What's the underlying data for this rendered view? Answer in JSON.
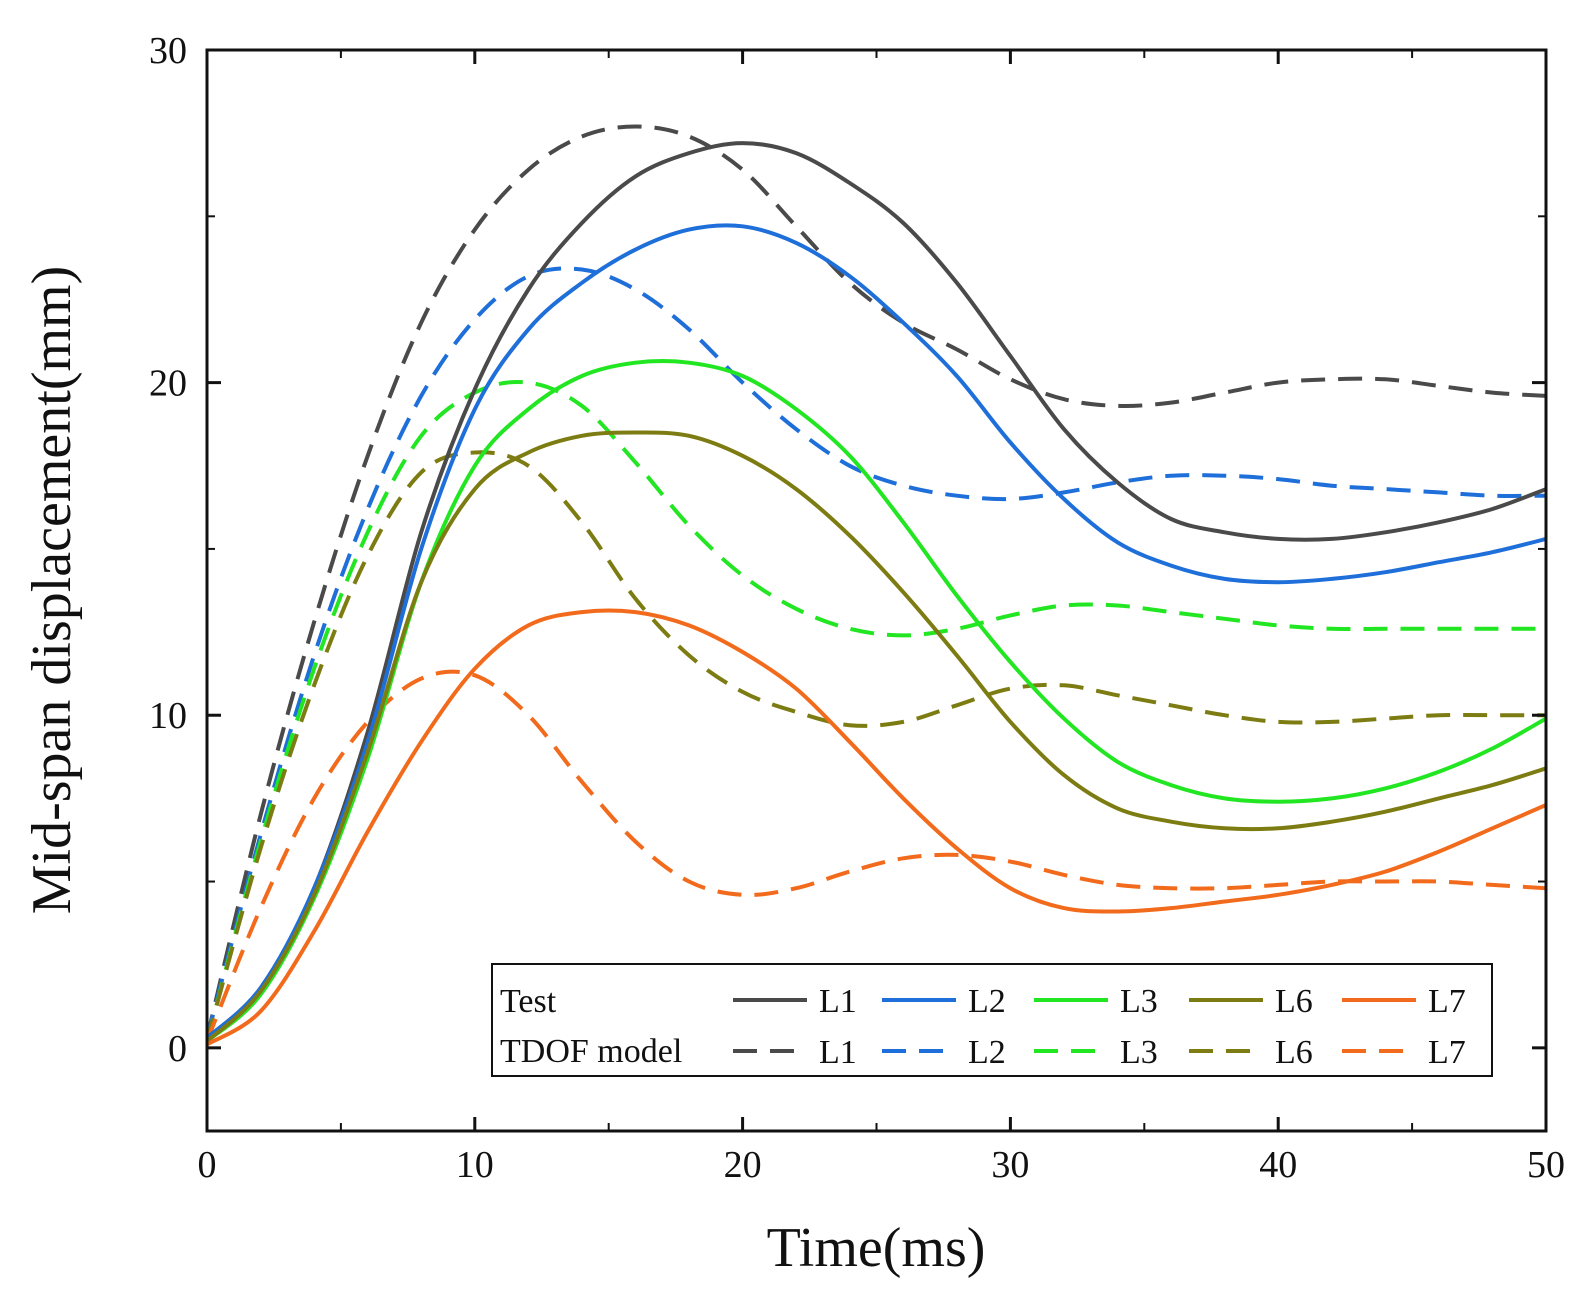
{
  "chart_data": {
    "type": "line",
    "title": "",
    "xlabel": "Time(ms)",
    "ylabel": "Mid-span displacement(mm)",
    "xlim": [
      0,
      50
    ],
    "ylim": [
      -2.5,
      30
    ],
    "xticks": [
      0,
      10,
      20,
      30,
      40,
      50
    ],
    "yticks": [
      0,
      10,
      20,
      30
    ],
    "grid": false,
    "legend": {
      "position": "bottom-right",
      "groups": [
        {
          "label": "Test",
          "style": "solid"
        },
        {
          "label": "TDOF model",
          "style": "dashed"
        }
      ]
    },
    "series": [
      {
        "name": "L1",
        "group": "Test",
        "style": "solid",
        "color": "#4a4a4a",
        "x": [
          0,
          2,
          4,
          6,
          8,
          10,
          12,
          14,
          16,
          18,
          20,
          22,
          24,
          26,
          28,
          30,
          32,
          34,
          36,
          38,
          40,
          42,
          44,
          46,
          48,
          50
        ],
        "y": [
          0.3,
          1.8,
          4.8,
          9.5,
          15.5,
          19.8,
          22.8,
          24.8,
          26.2,
          26.9,
          27.2,
          26.9,
          26.0,
          24.8,
          23.0,
          20.8,
          18.6,
          17.0,
          15.9,
          15.5,
          15.3,
          15.3,
          15.5,
          15.8,
          16.2,
          16.8
        ]
      },
      {
        "name": "L2",
        "group": "Test",
        "style": "solid",
        "color": "#1e6fd9",
        "x": [
          0,
          2,
          4,
          6,
          8,
          10,
          12,
          14,
          16,
          18,
          20,
          22,
          24,
          26,
          28,
          30,
          32,
          34,
          36,
          38,
          40,
          42,
          44,
          46,
          48,
          50
        ],
        "y": [
          0.3,
          1.8,
          4.8,
          9.2,
          15.0,
          19.2,
          21.6,
          23.0,
          24.0,
          24.6,
          24.7,
          24.2,
          23.2,
          21.8,
          20.2,
          18.2,
          16.5,
          15.2,
          14.5,
          14.1,
          14.0,
          14.1,
          14.3,
          14.6,
          14.9,
          15.3
        ]
      },
      {
        "name": "L3",
        "group": "Test",
        "style": "solid",
        "color": "#22e622",
        "x": [
          0,
          2,
          4,
          6,
          8,
          10,
          12,
          14,
          16,
          18,
          20,
          22,
          24,
          26,
          28,
          30,
          32,
          34,
          36,
          38,
          40,
          42,
          44,
          46,
          48,
          50
        ],
        "y": [
          0.2,
          1.6,
          4.5,
          8.7,
          14.0,
          17.5,
          19.2,
          20.2,
          20.6,
          20.6,
          20.2,
          19.2,
          17.8,
          15.8,
          13.6,
          11.6,
          9.9,
          8.6,
          7.9,
          7.5,
          7.4,
          7.5,
          7.8,
          8.3,
          9.0,
          9.9
        ]
      },
      {
        "name": "L6",
        "group": "Test",
        "style": "solid",
        "color": "#7c7c12",
        "x": [
          0,
          2,
          4,
          6,
          8,
          10,
          12,
          14,
          16,
          18,
          20,
          22,
          24,
          26,
          28,
          30,
          32,
          34,
          36,
          38,
          40,
          42,
          44,
          46,
          48,
          50
        ],
        "y": [
          0.2,
          1.7,
          4.6,
          8.9,
          14.0,
          16.8,
          17.9,
          18.4,
          18.5,
          18.4,
          17.8,
          16.8,
          15.4,
          13.7,
          11.8,
          9.8,
          8.2,
          7.2,
          6.8,
          6.6,
          6.6,
          6.8,
          7.1,
          7.5,
          7.9,
          8.4
        ]
      },
      {
        "name": "L7",
        "group": "Test",
        "style": "solid",
        "color": "#f26a1b",
        "x": [
          0,
          2,
          4,
          6,
          8,
          10,
          12,
          14,
          16,
          18,
          20,
          22,
          24,
          26,
          28,
          30,
          32,
          34,
          36,
          38,
          40,
          42,
          44,
          46,
          48,
          50
        ],
        "y": [
          0.1,
          1.1,
          3.5,
          6.5,
          9.2,
          11.4,
          12.7,
          13.1,
          13.1,
          12.7,
          11.9,
          10.8,
          9.2,
          7.5,
          6.0,
          4.8,
          4.2,
          4.1,
          4.2,
          4.4,
          4.6,
          4.9,
          5.3,
          5.9,
          6.6,
          7.3
        ]
      },
      {
        "name": "L1",
        "group": "TDOF model",
        "style": "dashed",
        "color": "#4a4a4a",
        "x": [
          0,
          2,
          4,
          6,
          8,
          10,
          12,
          14,
          16,
          18,
          20,
          22,
          24,
          26,
          28,
          30,
          32,
          34,
          36,
          38,
          40,
          42,
          44,
          46,
          48,
          50
        ],
        "y": [
          0.3,
          7.0,
          12.8,
          17.8,
          21.8,
          24.6,
          26.4,
          27.4,
          27.7,
          27.4,
          26.4,
          24.7,
          23.0,
          21.8,
          21.0,
          20.1,
          19.5,
          19.3,
          19.4,
          19.7,
          20.0,
          20.1,
          20.1,
          19.9,
          19.7,
          19.6
        ]
      },
      {
        "name": "L2",
        "group": "TDOF model",
        "style": "dashed",
        "color": "#1e6fd9",
        "x": [
          0,
          2,
          4,
          6,
          8,
          10,
          12,
          14,
          16,
          18,
          20,
          22,
          24,
          26,
          28,
          30,
          32,
          34,
          36,
          38,
          40,
          42,
          44,
          46,
          48,
          50
        ],
        "y": [
          0.3,
          6.4,
          11.8,
          16.2,
          19.6,
          21.9,
          23.2,
          23.4,
          22.8,
          21.6,
          20.0,
          18.6,
          17.5,
          16.9,
          16.6,
          16.5,
          16.7,
          17.0,
          17.2,
          17.2,
          17.1,
          16.9,
          16.8,
          16.7,
          16.6,
          16.6
        ]
      },
      {
        "name": "L3",
        "group": "TDOF model",
        "style": "dashed",
        "color": "#22e622",
        "x": [
          0,
          2,
          4,
          6,
          8,
          10,
          12,
          14,
          16,
          18,
          20,
          22,
          24,
          26,
          28,
          30,
          32,
          34,
          36,
          38,
          40,
          42,
          44,
          46,
          48,
          50
        ],
        "y": [
          0.2,
          6.2,
          11.4,
          15.5,
          18.4,
          19.7,
          20.0,
          19.3,
          17.6,
          15.7,
          14.2,
          13.2,
          12.6,
          12.4,
          12.6,
          13.0,
          13.3,
          13.3,
          13.1,
          12.9,
          12.7,
          12.6,
          12.6,
          12.6,
          12.6,
          12.6
        ]
      },
      {
        "name": "L6",
        "group": "TDOF model",
        "style": "dashed",
        "color": "#7c7c12",
        "x": [
          0,
          2,
          4,
          6,
          8,
          10,
          12,
          14,
          16,
          18,
          20,
          22,
          24,
          26,
          28,
          30,
          32,
          34,
          36,
          38,
          40,
          42,
          44,
          46,
          48,
          50
        ],
        "y": [
          0.2,
          6.0,
          10.9,
          14.8,
          17.3,
          17.9,
          17.5,
          15.8,
          13.5,
          11.8,
          10.7,
          10.1,
          9.7,
          9.8,
          10.3,
          10.8,
          10.9,
          10.6,
          10.3,
          10.0,
          9.8,
          9.8,
          9.9,
          10.0,
          10.0,
          10.0
        ]
      },
      {
        "name": "L7",
        "group": "TDOF model",
        "style": "dashed",
        "color": "#f26a1b",
        "x": [
          0,
          2,
          4,
          6,
          8,
          10,
          12,
          14,
          16,
          18,
          20,
          22,
          24,
          26,
          28,
          30,
          32,
          34,
          36,
          38,
          40,
          42,
          44,
          46,
          48,
          50
        ],
        "y": [
          0.2,
          4.2,
          7.5,
          9.8,
          11.1,
          11.2,
          10.0,
          8.0,
          6.2,
          5.0,
          4.6,
          4.8,
          5.3,
          5.7,
          5.8,
          5.6,
          5.2,
          4.9,
          4.8,
          4.8,
          4.9,
          5.0,
          5.0,
          5.0,
          4.9,
          4.8
        ]
      }
    ]
  }
}
